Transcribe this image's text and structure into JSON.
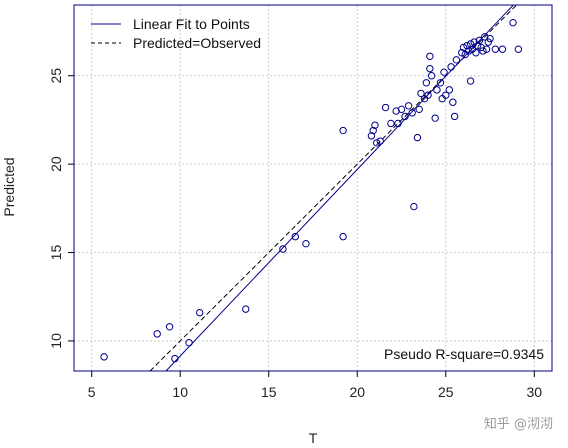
{
  "chart_data": {
    "type": "scatter",
    "xlabel": "T",
    "ylabel": "Predicted",
    "xlim": [
      4,
      31
    ],
    "ylim": [
      8.3,
      29
    ],
    "xticks": [
      5,
      10,
      15,
      20,
      25,
      30
    ],
    "yticks": [
      10,
      15,
      20,
      25
    ],
    "grid": true,
    "legend_position": "top-left",
    "legend": [
      {
        "label": "Linear Fit to Points",
        "style": "solid"
      },
      {
        "label": "Predicted=Observed",
        "style": "dashed"
      }
    ],
    "annotation": "Pseudo R-square=0.9345",
    "watermark": "知乎 @沏沏",
    "colors": {
      "points": "#00008b",
      "fit_line": "#00008b",
      "identity_line": "#000000",
      "grid": "#cccccc",
      "frame": "#000080"
    },
    "fit_line": {
      "slope": 1.055,
      "intercept": -1.4
    },
    "identity_line": {
      "slope": 1,
      "intercept": 0
    },
    "points": [
      [
        5.7,
        9.1
      ],
      [
        8.7,
        10.4
      ],
      [
        9.4,
        10.8
      ],
      [
        9.7,
        9.0
      ],
      [
        10.5,
        9.9
      ],
      [
        11.1,
        11.6
      ],
      [
        13.7,
        11.8
      ],
      [
        15.8,
        15.2
      ],
      [
        16.5,
        15.9
      ],
      [
        17.1,
        15.5
      ],
      [
        19.2,
        15.9
      ],
      [
        19.2,
        21.9
      ],
      [
        20.8,
        21.6
      ],
      [
        20.9,
        21.9
      ],
      [
        21.0,
        22.2
      ],
      [
        21.1,
        21.2
      ],
      [
        21.3,
        21.3
      ],
      [
        21.6,
        23.2
      ],
      [
        21.9,
        22.3
      ],
      [
        22.2,
        23.0
      ],
      [
        22.3,
        22.3
      ],
      [
        22.5,
        23.1
      ],
      [
        22.7,
        22.7
      ],
      [
        22.9,
        23.3
      ],
      [
        23.1,
        22.9
      ],
      [
        23.2,
        17.6
      ],
      [
        23.4,
        21.5
      ],
      [
        23.5,
        23.1
      ],
      [
        23.6,
        24.0
      ],
      [
        23.8,
        23.7
      ],
      [
        23.9,
        24.6
      ],
      [
        24.0,
        23.9
      ],
      [
        24.1,
        25.4
      ],
      [
        24.1,
        26.1
      ],
      [
        24.2,
        25.0
      ],
      [
        24.4,
        22.6
      ],
      [
        24.5,
        24.2
      ],
      [
        24.7,
        24.6
      ],
      [
        24.8,
        23.7
      ],
      [
        24.9,
        25.2
      ],
      [
        25.0,
        23.9
      ],
      [
        25.2,
        24.2
      ],
      [
        25.3,
        25.5
      ],
      [
        25.4,
        23.5
      ],
      [
        25.5,
        22.7
      ],
      [
        25.6,
        25.9
      ],
      [
        25.9,
        26.3
      ],
      [
        26.0,
        26.6
      ],
      [
        26.1,
        26.2
      ],
      [
        26.2,
        26.7
      ],
      [
        26.3,
        26.4
      ],
      [
        26.4,
        26.8
      ],
      [
        26.4,
        24.7
      ],
      [
        26.5,
        26.5
      ],
      [
        26.6,
        26.9
      ],
      [
        26.7,
        26.3
      ],
      [
        26.8,
        26.7
      ],
      [
        26.9,
        27.0
      ],
      [
        27.0,
        26.6
      ],
      [
        27.1,
        26.4
      ],
      [
        27.2,
        27.2
      ],
      [
        27.3,
        26.5
      ],
      [
        27.4,
        26.9
      ],
      [
        27.5,
        27.1
      ],
      [
        27.8,
        26.5
      ],
      [
        28.2,
        26.5
      ],
      [
        28.8,
        28.0
      ],
      [
        29.1,
        26.5
      ]
    ]
  }
}
